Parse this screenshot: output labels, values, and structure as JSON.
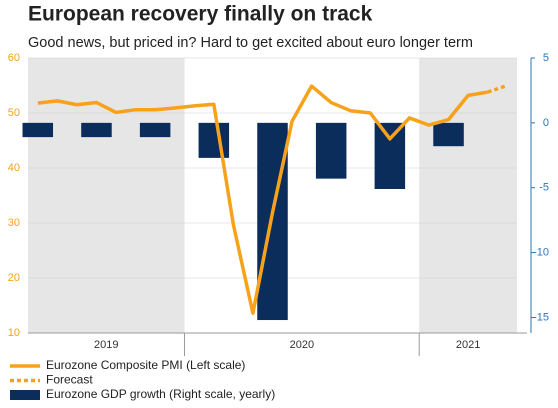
{
  "chart_data": {
    "type": "line",
    "title": "European recovery finally on track",
    "subtitle": "Good news, but priced in? Hard to get excited about euro longer term",
    "categories": [
      null,
      null,
      null,
      null,
      null,
      null,
      null,
      null,
      null,
      null,
      null,
      null,
      null,
      null,
      null,
      null,
      null,
      null,
      null,
      null,
      null,
      null,
      null,
      null,
      null
    ],
    "x_groups": [
      {
        "label": "2019",
        "span": 8,
        "shaded": true
      },
      {
        "label": "2020",
        "span": 12,
        "shaded": false
      },
      {
        "label": "2021",
        "span": 5,
        "shaded": true
      }
    ],
    "ylim": [
      10,
      60
    ],
    "yticks": [
      10,
      20,
      30,
      40,
      50,
      60
    ],
    "y2lim": [
      -16.2,
      5
    ],
    "y2ticks": [
      5,
      0,
      -5,
      -10,
      -15
    ],
    "grid": true,
    "series": [
      {
        "name": "Eurozone Composite PMI (Left scale)",
        "color": "#f7a21b",
        "style": "solid",
        "values": [
          51.8,
          52.2,
          51.5,
          51.9,
          50.1,
          50.6,
          50.6,
          50.9,
          51.3,
          51.6,
          29.7,
          13.6,
          31.9,
          48.5,
          54.9,
          51.9,
          50.4,
          50.0,
          45.3,
          49.1,
          47.8,
          48.8,
          53.2,
          53.8,
          null
        ]
      },
      {
        "name": "Forecast",
        "color": "#f7a21b",
        "style": "dotted",
        "values": [
          null,
          null,
          null,
          null,
          null,
          null,
          null,
          null,
          null,
          null,
          null,
          null,
          null,
          null,
          null,
          null,
          null,
          null,
          null,
          null,
          null,
          null,
          null,
          53.8,
          55
        ]
      },
      {
        "name": "Eurozone GDP growth (Right scale, yearly)",
        "color": "#0b2d5b",
        "style": "bar",
        "axis": "y2",
        "values": [
          -1.1,
          null,
          null,
          -1.1,
          null,
          null,
          -1.1,
          null,
          null,
          -2.7,
          null,
          null,
          -15.2,
          null,
          null,
          -4.3,
          null,
          null,
          -5.1,
          null,
          null,
          -1.8,
          null,
          null,
          null
        ]
      }
    ]
  }
}
